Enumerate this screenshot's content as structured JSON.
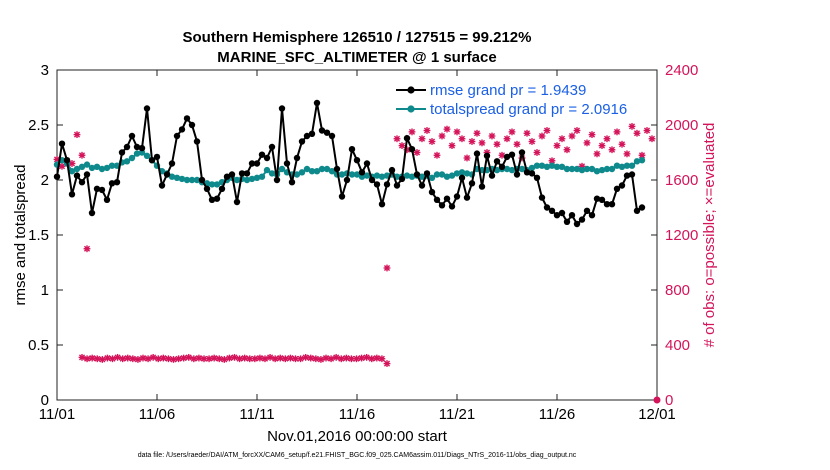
{
  "chart_data": {
    "type": "line",
    "title": "Southern Hemisphere 126510 / 127515 = 99.212%",
    "subtitle": "MARINE_SFC_ALTIMETER @ 1 surface",
    "xlabel": "Nov.01,2016 00:00:00 start",
    "ylabel_left": "rmse and totalspread",
    "ylabel_right": "# of obs: o=possible; ×=evaluated",
    "footnote": "data file: /Users/raeder/DAI/ATM_forcXX/CAM6_setup/f.e21.FHIST_BGC.f09_025.CAM6assim.011/Diags_NTrS_2016-11/obs_diag_output.nc",
    "xlim": [
      0,
      30
    ],
    "ylim_left": [
      0,
      3
    ],
    "ylim_right": [
      0,
      2400
    ],
    "x_ticks": [
      0,
      5,
      10,
      15,
      20,
      25,
      30
    ],
    "x_tick_labels": [
      "11/01",
      "11/06",
      "11/11",
      "11/16",
      "11/21",
      "11/26",
      "12/01"
    ],
    "y_left_ticks": [
      0,
      0.5,
      1,
      1.5,
      2,
      2.5,
      3
    ],
    "y_left_tick_labels": [
      "0",
      "0.5",
      "1",
      "1.5",
      "2",
      "2.5",
      "3"
    ],
    "y_right_ticks": [
      0,
      400,
      800,
      1200,
      1600,
      2000,
      2400
    ],
    "y_right_tick_labels": [
      "0",
      "400",
      "800",
      "1200",
      "1600",
      "2000",
      "2400"
    ],
    "step_days": 0.25,
    "series": [
      {
        "name": "rmse",
        "label": "rmse grand pr = 1.9439",
        "color": "#000000",
        "axis": "left",
        "values": [
          2.03,
          2.33,
          2.18,
          1.87,
          2.04,
          1.98,
          2.05,
          1.7,
          1.92,
          1.91,
          1.82,
          1.97,
          1.98,
          2.25,
          2.3,
          2.4,
          2.3,
          2.29,
          2.65,
          2.18,
          2.21,
          1.95,
          2.05,
          2.15,
          2.4,
          2.46,
          2.56,
          2.5,
          2.35,
          2.0,
          1.92,
          1.82,
          1.83,
          1.92,
          2.03,
          2.05,
          1.8,
          2.06,
          2.06,
          2.15,
          2.15,
          2.23,
          2.2,
          2.3,
          2.0,
          2.65,
          2.15,
          1.98,
          2.2,
          2.35,
          2.4,
          2.42,
          2.7,
          2.45,
          2.43,
          2.4,
          2.1,
          1.85,
          2.0,
          2.28,
          2.18,
          2.07,
          2.15,
          2.0,
          1.96,
          1.78,
          1.96,
          2.09,
          1.95,
          2.01,
          2.38,
          2.28,
          2.05,
          1.95,
          2.06,
          1.89,
          1.82,
          1.77,
          1.83,
          1.76,
          1.85,
          2.02,
          1.84,
          1.97,
          2.24,
          1.94,
          2.22,
          2.04,
          2.17,
          2.12,
          2.21,
          2.23,
          2.05,
          2.25,
          2.07,
          2.06,
          2.02,
          1.84,
          1.75,
          1.72,
          1.68,
          1.7,
          1.62,
          1.68,
          1.6,
          1.64,
          1.72,
          1.68,
          1.83,
          1.82,
          1.78,
          1.78,
          1.92,
          1.95,
          2.04,
          2.05,
          1.72,
          1.75
        ]
      },
      {
        "name": "totalspread",
        "label": "totalspread grand pr = 2.0916",
        "color": "#0e8a8c",
        "axis": "left",
        "values": [
          2.14,
          2.18,
          2.15,
          2.08,
          2.1,
          2.12,
          2.14,
          2.11,
          2.12,
          2.1,
          2.11,
          2.13,
          2.13,
          2.16,
          2.17,
          2.2,
          2.24,
          2.25,
          2.22,
          2.18,
          2.13,
          2.08,
          2.06,
          2.03,
          2.02,
          2.01,
          2.0,
          2.0,
          2.0,
          1.98,
          1.97,
          1.96,
          1.96,
          1.98,
          2.0,
          2.02,
          2.0,
          2.01,
          2.0,
          2.01,
          2.02,
          2.03,
          2.09,
          2.06,
          2.05,
          2.1,
          2.07,
          2.05,
          2.05,
          2.07,
          2.1,
          2.08,
          2.08,
          2.1,
          2.1,
          2.08,
          2.05,
          2.05,
          2.06,
          2.05,
          2.05,
          2.03,
          2.04,
          2.03,
          2.04,
          2.03,
          2.04,
          2.05,
          2.03,
          2.03,
          2.04,
          2.03,
          2.04,
          2.03,
          2.04,
          2.02,
          2.05,
          2.05,
          2.03,
          2.04,
          2.06,
          2.07,
          2.06,
          2.05,
          2.1,
          2.09,
          2.09,
          2.1,
          2.09,
          2.1,
          2.1,
          2.09,
          2.1,
          2.1,
          2.09,
          2.11,
          2.13,
          2.13,
          2.12,
          2.13,
          2.12,
          2.12,
          2.1,
          2.1,
          2.1,
          2.09,
          2.1,
          2.1,
          2.08,
          2.09,
          2.1,
          2.1,
          2.13,
          2.12,
          2.13,
          2.13,
          2.17,
          2.18
        ]
      }
    ],
    "obs_counts": {
      "color": "#d4145a",
      "axis": "right",
      "evaluated": [
        [
          0.0,
          1750
        ],
        [
          0.25,
          1700
        ],
        [
          0.5,
          1740
        ],
        [
          0.75,
          1720
        ],
        [
          1.0,
          1930
        ],
        [
          1.25,
          1780
        ],
        [
          1.5,
          1100
        ],
        [
          16.5,
          960
        ],
        [
          17.0,
          1900
        ],
        [
          17.25,
          1850
        ],
        [
          17.5,
          1820
        ],
        [
          17.75,
          1950
        ],
        [
          18.0,
          1800
        ],
        [
          18.25,
          1900
        ],
        [
          18.5,
          1960
        ],
        [
          18.75,
          1880
        ],
        [
          19.0,
          1780
        ],
        [
          19.25,
          1920
        ],
        [
          19.5,
          1970
        ],
        [
          19.75,
          1850
        ],
        [
          20.0,
          1950
        ],
        [
          20.25,
          1900
        ],
        [
          20.5,
          1760
        ],
        [
          20.75,
          1880
        ],
        [
          21.0,
          1940
        ],
        [
          21.25,
          1870
        ],
        [
          21.5,
          1800
        ],
        [
          21.75,
          1920
        ],
        [
          22.0,
          1860
        ],
        [
          22.25,
          1780
        ],
        [
          22.5,
          1900
        ],
        [
          22.75,
          1950
        ],
        [
          23.0,
          1860
        ],
        [
          23.25,
          1760
        ],
        [
          23.5,
          1940
        ],
        [
          23.75,
          1880
        ],
        [
          24.0,
          1800
        ],
        [
          24.25,
          1920
        ],
        [
          24.5,
          1960
        ],
        [
          24.75,
          1740
        ],
        [
          25.0,
          1850
        ],
        [
          25.25,
          1900
        ],
        [
          25.5,
          1820
        ],
        [
          25.75,
          1920
        ],
        [
          26.0,
          1960
        ],
        [
          26.25,
          1700
        ],
        [
          26.5,
          1870
        ],
        [
          26.75,
          1930
        ],
        [
          27.0,
          1790
        ],
        [
          27.25,
          1850
        ],
        [
          27.5,
          1900
        ],
        [
          27.75,
          1820
        ],
        [
          28.0,
          1950
        ],
        [
          28.25,
          1860
        ],
        [
          28.5,
          1790
        ],
        [
          28.75,
          1990
        ],
        [
          29.0,
          1940
        ],
        [
          29.25,
          1780
        ],
        [
          29.5,
          1960
        ],
        [
          29.75,
          1900
        ],
        [
          30.0,
          0
        ]
      ],
      "low_band": {
        "x_start": 1.25,
        "x_end": 16.5,
        "values": [
          310,
          300,
          305,
          300,
          295,
          305,
          300,
          310,
          300,
          305,
          300,
          295,
          305,
          300,
          310,
          300,
          305,
          300,
          295,
          300,
          305,
          310,
          300,
          305,
          300,
          300,
          305,
          300,
          295,
          305,
          310,
          300,
          305,
          300,
          300,
          305,
          300,
          310,
          300,
          305,
          300,
          305,
          300,
          300,
          310,
          305,
          300,
          295,
          305,
          300,
          310,
          300,
          305,
          300,
          300,
          305,
          310,
          300,
          305,
          300,
          265
        ]
      }
    }
  }
}
